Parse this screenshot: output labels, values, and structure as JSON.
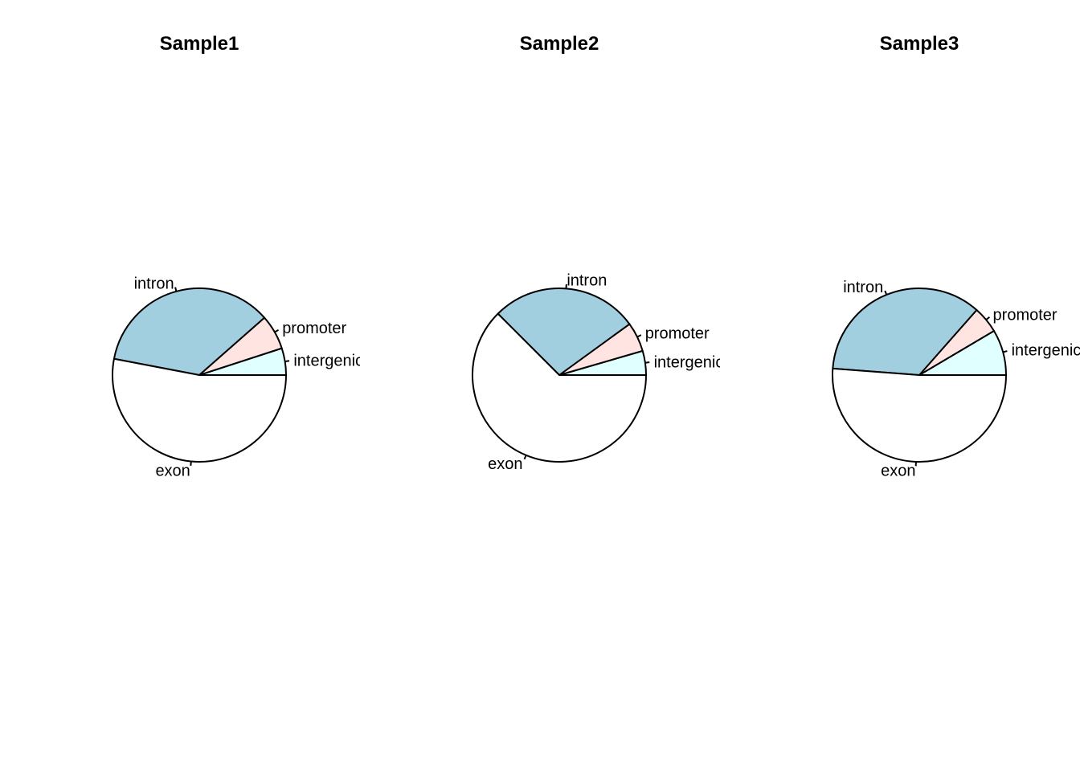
{
  "chart_data": [
    {
      "type": "pie",
      "title": "Sample1",
      "categories": [
        "intergenic",
        "promoter",
        "intron",
        "exon"
      ],
      "values": [
        0.05,
        0.065,
        0.355,
        0.53
      ],
      "colors": [
        "#E0FFFF",
        "#FFE4E1",
        "#A2CFE0",
        "#FFFFFF"
      ]
    },
    {
      "type": "pie",
      "title": "Sample2",
      "categories": [
        "intergenic",
        "promoter",
        "intron",
        "exon"
      ],
      "values": [
        0.045,
        0.055,
        0.275,
        0.625
      ],
      "colors": [
        "#E0FFFF",
        "#FFE4E1",
        "#A2CFE0",
        "#FFFFFF"
      ]
    },
    {
      "type": "pie",
      "title": "Sample3",
      "categories": [
        "intergenic",
        "promoter",
        "intron",
        "exon"
      ],
      "values": [
        0.085,
        0.05,
        0.353,
        0.512
      ],
      "colors": [
        "#E0FFFF",
        "#FFE4E1",
        "#A2CFE0",
        "#FFFFFF"
      ]
    }
  ]
}
